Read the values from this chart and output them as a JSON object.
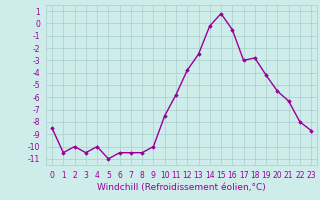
{
  "x": [
    0,
    1,
    2,
    3,
    4,
    5,
    6,
    7,
    8,
    9,
    10,
    11,
    12,
    13,
    14,
    15,
    16,
    17,
    18,
    19,
    20,
    21,
    22,
    23
  ],
  "y": [
    -8.5,
    -10.5,
    -10.0,
    -10.5,
    -10.0,
    -11.0,
    -10.5,
    -10.5,
    -10.5,
    -10.0,
    -7.5,
    -5.8,
    -3.8,
    -2.5,
    -0.2,
    0.8,
    -0.5,
    -3.0,
    -2.8,
    -4.2,
    -5.5,
    -6.3,
    -8.0,
    -8.7
  ],
  "line_color": "#990099",
  "marker": "D",
  "marker_size": 1.8,
  "linewidth": 1.0,
  "bg_color": "#cdecea",
  "grid_color": "#aacfcc",
  "xlabel": "Windchill (Refroidissement éolien,°C)",
  "xlabel_fontsize": 6.5,
  "tick_fontsize": 5.5,
  "xlim": [
    -0.5,
    23.5
  ],
  "ylim": [
    -11.5,
    1.5
  ],
  "yticks": [
    1,
    0,
    -1,
    -2,
    -3,
    -4,
    -5,
    -6,
    -7,
    -8,
    -9,
    -10,
    -11
  ],
  "xticks": [
    0,
    1,
    2,
    3,
    4,
    5,
    6,
    7,
    8,
    9,
    10,
    11,
    12,
    13,
    14,
    15,
    16,
    17,
    18,
    19,
    20,
    21,
    22,
    23
  ]
}
